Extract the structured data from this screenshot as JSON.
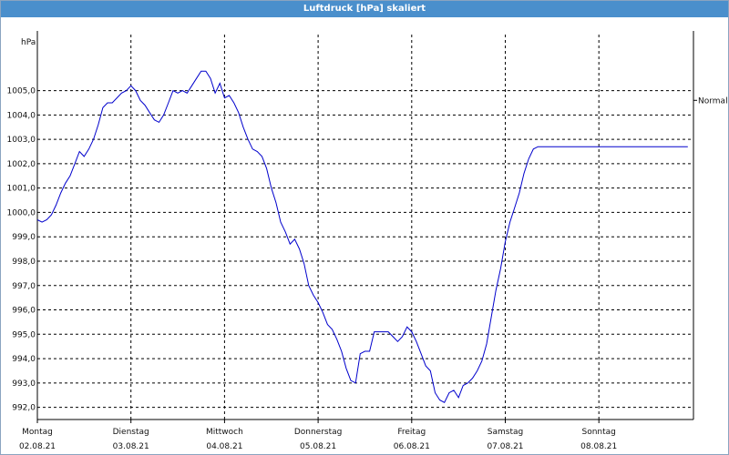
{
  "title": "Luftdruck [hPa] skaliert",
  "colors": {
    "titlebar": "#4a8fcc",
    "line": "#0000cc",
    "grid": "#000000"
  },
  "chart_data": {
    "type": "line",
    "title": "Luftdruck [hPa] skaliert",
    "ylabel": "hPa",
    "reference_label": "Normal",
    "reference_value": 1004.6,
    "ylim": [
      991.5,
      1007.3
    ],
    "yticks": [
      992.0,
      993.0,
      994.0,
      995.0,
      996.0,
      997.0,
      998.0,
      999.0,
      1000.0,
      1001.0,
      1002.0,
      1003.0,
      1004.0,
      1005.0
    ],
    "ytick_labels": [
      "992,0",
      "993,0",
      "994,0",
      "995,0",
      "996,0",
      "997,0",
      "998,0",
      "999,0",
      "1000,0",
      "1001,0",
      "1002,0",
      "1003,0",
      "1004,0",
      "1005,0"
    ],
    "xlim": [
      0,
      7.0
    ],
    "xticks": [
      {
        "day": "Montag",
        "date": "02.08.21"
      },
      {
        "day": "Dienstag",
        "date": "03.08.21"
      },
      {
        "day": "Mittwoch",
        "date": "04.08.21"
      },
      {
        "day": "Donnerstag",
        "date": "05.08.21"
      },
      {
        "day": "Freitag",
        "date": "06.08.21"
      },
      {
        "day": "Samstag",
        "date": "07.08.21"
      },
      {
        "day": "Sonntag",
        "date": "08.08.21"
      }
    ],
    "grid": true,
    "series": [
      {
        "x": [
          0,
          0.05,
          0.1,
          0.15,
          0.2,
          0.25,
          0.3,
          0.35,
          0.4,
          0.45,
          0.5,
          0.55,
          0.6,
          0.65,
          0.7,
          0.75,
          0.8,
          0.85,
          0.9,
          0.95,
          1.0,
          1.05,
          1.1,
          1.15,
          1.2,
          1.25,
          1.3,
          1.35,
          1.4,
          1.45,
          1.5,
          1.55,
          1.6,
          1.65,
          1.7,
          1.75,
          1.8,
          1.85,
          1.9,
          1.95,
          2.0,
          2.05,
          2.1,
          2.15,
          2.2,
          2.25,
          2.3,
          2.35,
          2.4,
          2.45,
          2.5,
          2.55,
          2.6,
          2.65,
          2.7,
          2.75,
          2.8,
          2.85,
          2.9,
          2.95,
          3.0,
          3.05,
          3.1,
          3.15,
          3.2,
          3.25,
          3.3,
          3.35,
          3.4,
          3.45,
          3.5,
          3.55,
          3.6,
          3.65,
          3.7,
          3.75,
          3.8,
          3.85,
          3.9,
          3.95,
          4.0,
          4.05,
          4.1,
          4.15,
          4.2,
          4.25,
          4.3,
          4.35,
          4.4,
          4.45,
          4.5,
          4.55,
          4.6,
          4.65,
          4.7,
          4.75,
          4.8,
          4.85,
          4.9,
          4.95,
          5.0,
          5.05,
          5.1,
          5.15,
          5.2,
          5.25,
          5.3,
          5.35,
          5.4,
          5.45,
          5.5,
          5.55,
          5.6,
          5.65,
          5.7,
          5.75,
          5.8,
          5.85,
          5.9,
          5.95,
          6.0,
          6.05,
          6.1,
          6.15,
          6.2,
          6.25,
          6.3,
          6.35,
          6.4,
          6.45,
          6.5,
          6.55,
          6.6,
          6.65,
          6.7,
          6.75,
          6.8,
          6.85,
          6.9,
          6.95,
          7.0
        ],
        "y": [
          999.7,
          999.6,
          999.7,
          999.9,
          1000.3,
          1000.8,
          1001.2,
          1001.5,
          1002.0,
          1002.5,
          1002.3,
          1002.6,
          1003.0,
          1003.6,
          1004.3,
          1004.5,
          1004.5,
          1004.7,
          1004.9,
          1005.0,
          1005.2,
          1005.0,
          1004.6,
          1004.4,
          1004.1,
          1003.8,
          1003.7,
          1004.0,
          1004.5,
          1005.0,
          1004.9,
          1005.0,
          1004.9,
          1005.2,
          1005.5,
          1005.8,
          1005.8,
          1005.5,
          1004.9,
          1005.3,
          1004.7,
          1004.8,
          1004.5,
          1004.1,
          1003.5,
          1003.0,
          1002.6,
          1002.5,
          1002.3,
          1001.8,
          1001.0,
          1000.4,
          999.6,
          999.2,
          998.7,
          998.9,
          998.5,
          997.9,
          997.0,
          996.6,
          996.3,
          995.9,
          995.4,
          995.2,
          994.8,
          994.3,
          993.6,
          993.1,
          993.0,
          994.2,
          994.3,
          994.3,
          995.1,
          995.1,
          995.1,
          995.1,
          994.9,
          994.7,
          994.9,
          995.3,
          995.1,
          994.7,
          994.2,
          993.7,
          993.5,
          992.6,
          992.3,
          992.2,
          992.6,
          992.7,
          992.4,
          992.9,
          993.0,
          993.2,
          993.5,
          993.9,
          994.6,
          995.7,
          996.8,
          997.7,
          998.8,
          999.6,
          1000.2,
          1000.8,
          1001.6,
          1002.2,
          1002.6,
          1002.7,
          1002.7,
          1002.7,
          1002.7,
          1002.7,
          1002.7,
          1002.7,
          1002.7,
          1002.7,
          1002.7,
          1002.7,
          1002.7,
          1002.7,
          1002.7,
          1002.7,
          1002.7,
          1002.7,
          1002.7,
          1002.7,
          1002.7,
          1002.7,
          1002.7,
          1002.7,
          1002.7,
          1002.7,
          1002.7,
          1002.7,
          1002.7,
          1002.7,
          1002.7,
          1002.7,
          1002.7,
          1002.7,
          1002.7
        ]
      }
    ]
  }
}
